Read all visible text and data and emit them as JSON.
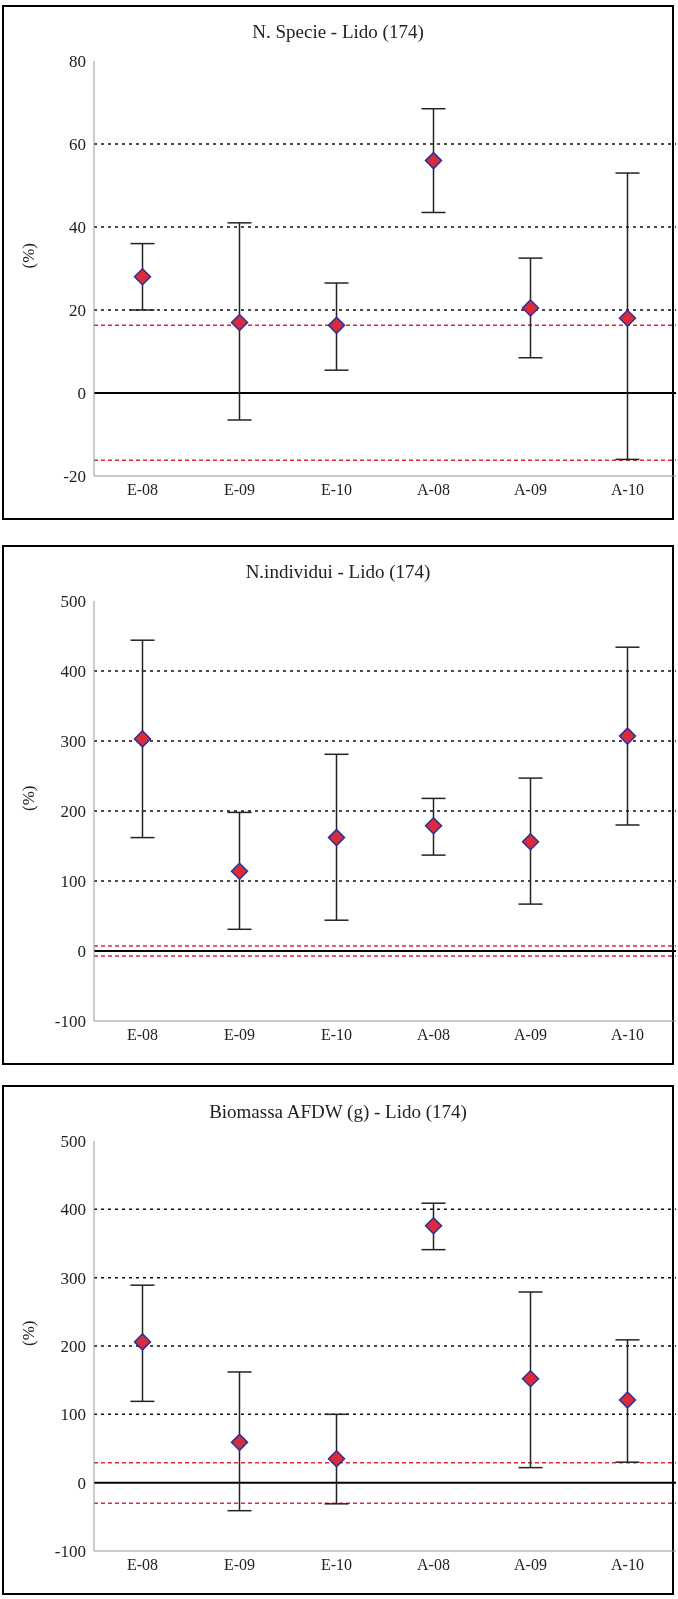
{
  "chart_data": [
    {
      "type": "scatter",
      "title": "N. Specie - Lido (174)",
      "ylabel": "(%)",
      "categories": [
        "E-08",
        "E-09",
        "E-10",
        "A-08",
        "A-09",
        "A-10"
      ],
      "series": [
        {
          "color": "#d92b3a",
          "values": [
            28,
            17,
            16.3,
            56,
            20.5,
            18
          ],
          "errors": [
            [
              20,
              36
            ],
            [
              -6.5,
              41
            ],
            [
              5.5,
              26.5
            ],
            [
              43.5,
              68.5
            ],
            [
              8.5,
              32.5
            ],
            [
              -16,
              53
            ]
          ]
        }
      ],
      "marker": "diamond",
      "ylim": [
        -20,
        80
      ],
      "yticks": [
        -20,
        0,
        20,
        40,
        60,
        80
      ],
      "grid": "y",
      "ref_lines": [
        {
          "axis": "y",
          "value": 0,
          "color": "#000000",
          "line_style": "solid"
        },
        {
          "axis": "y",
          "value": 16.3,
          "color": "#d92b3a",
          "line_style": "dashed"
        },
        {
          "axis": "y",
          "value": -16.2,
          "color": "#d92b3a",
          "line_style": "dashed"
        }
      ]
    },
    {
      "type": "scatter",
      "title": "N.individui - Lido (174)",
      "ylabel": "(%)",
      "categories": [
        "E-08",
        "E-09",
        "E-10",
        "A-08",
        "A-09",
        "A-10"
      ],
      "series": [
        {
          "color": "#d92b3a",
          "values": [
            303,
            114,
            162,
            179,
            156,
            307
          ],
          "errors": [
            [
              162,
              444
            ],
            [
              31,
              198
            ],
            [
              44,
              281
            ],
            [
              137,
              218
            ],
            [
              67,
              247
            ],
            [
              180,
              434
            ]
          ]
        }
      ],
      "marker": "diamond",
      "ylim": [
        -100,
        500
      ],
      "yticks": [
        -100,
        0,
        100,
        200,
        300,
        400,
        500
      ],
      "grid": "y",
      "ref_lines": [
        {
          "axis": "y",
          "value": 0,
          "color": "#000000",
          "line_style": "solid"
        },
        {
          "axis": "y",
          "value": 7,
          "color": "#d92b3a",
          "line_style": "dashed"
        },
        {
          "axis": "y",
          "value": -7,
          "color": "#d92b3a",
          "line_style": "dashed"
        }
      ]
    },
    {
      "type": "scatter",
      "title": "Biomassa AFDW (g) - Lido (174)",
      "ylabel": "(%)",
      "categories": [
        "E-08",
        "E-09",
        "E-10",
        "A-08",
        "A-09",
        "A-10"
      ],
      "series": [
        {
          "color": "#d92b3a",
          "values": [
            206,
            59,
            35,
            376,
            152,
            121
          ],
          "errors": [
            [
              119,
              289
            ],
            [
              -41,
              162
            ],
            [
              -31,
              100
            ],
            [
              341,
              409
            ],
            [
              22,
              279
            ],
            [
              30,
              209
            ]
          ]
        }
      ],
      "marker": "diamond",
      "ylim": [
        -100,
        500
      ],
      "yticks": [
        -100,
        0,
        100,
        200,
        300,
        400,
        500
      ],
      "grid": "y",
      "ref_lines": [
        {
          "axis": "y",
          "value": 0,
          "color": "#000000",
          "line_style": "solid"
        },
        {
          "axis": "y",
          "value": 29,
          "color": "#d92b3a",
          "line_style": "dashed"
        },
        {
          "axis": "y",
          "value": -30,
          "color": "#d92b3a",
          "line_style": "dashed"
        }
      ]
    }
  ]
}
